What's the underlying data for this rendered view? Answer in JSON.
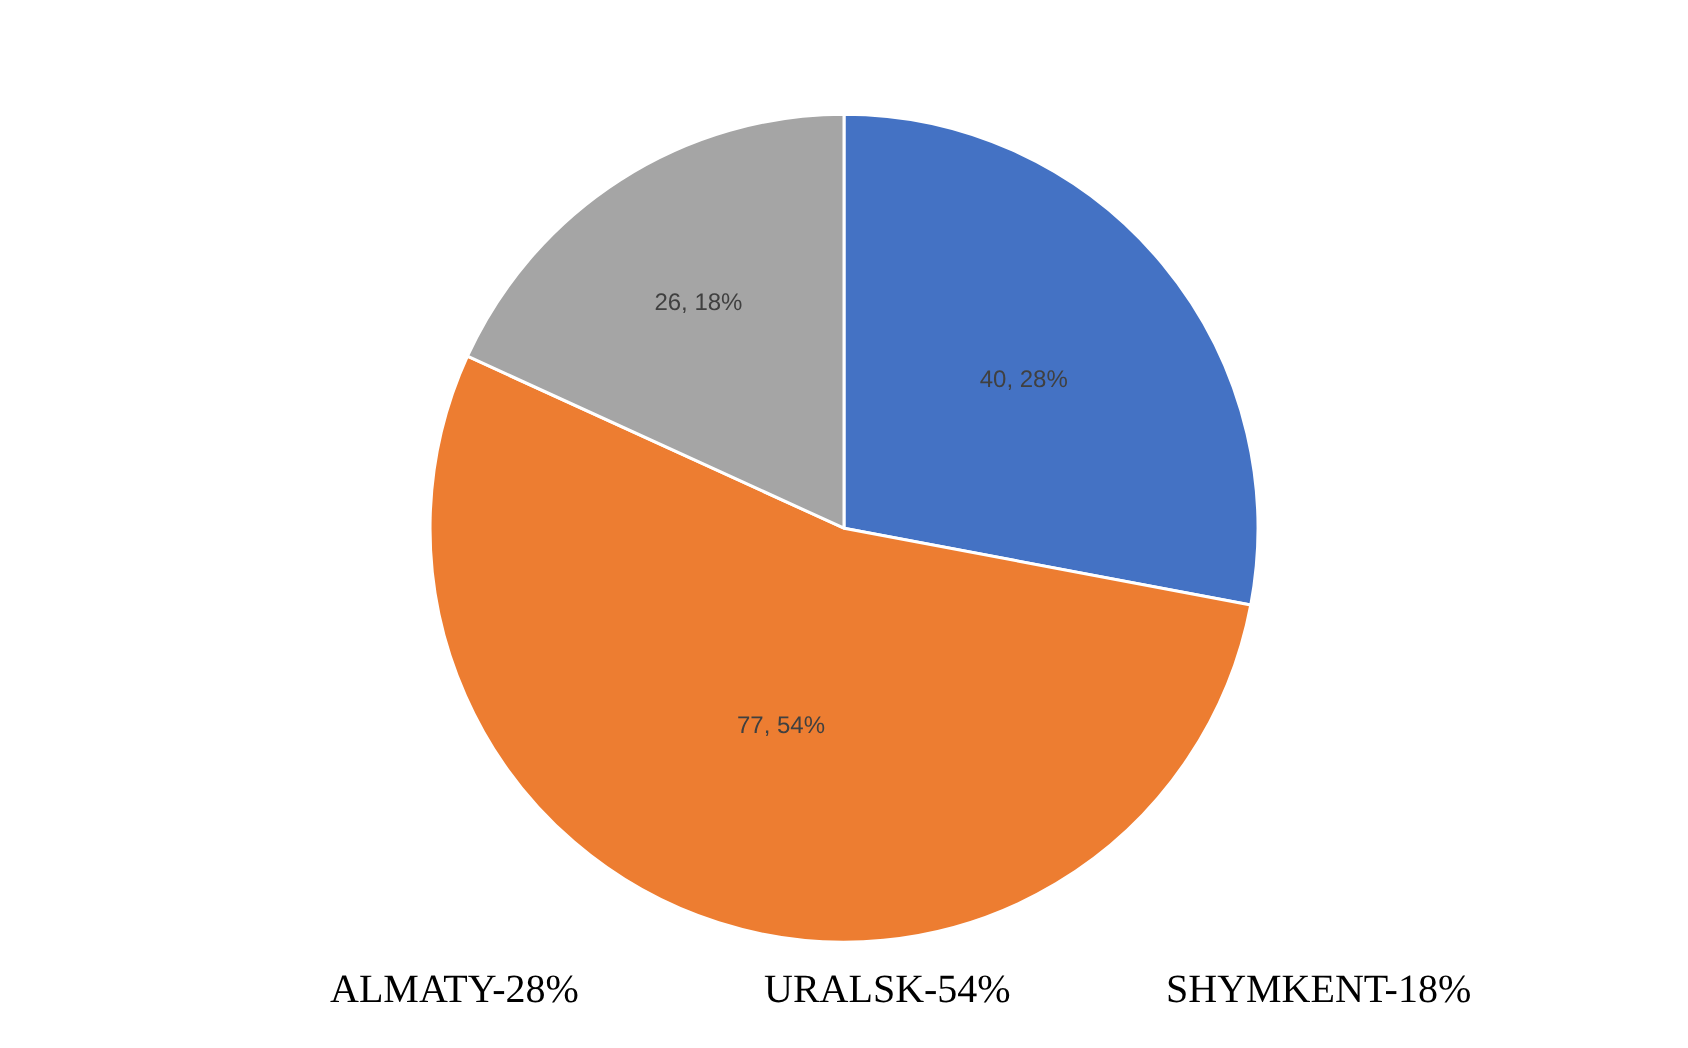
{
  "chart_data": {
    "type": "pie",
    "categories": [
      null,
      null,
      null
    ],
    "values": [
      40,
      77,
      26
    ],
    "colors": [
      "#4472c4",
      "#ed7d31",
      "#a5a5a5"
    ],
    "value_labels": [
      "40, 28%",
      "77, 54%",
      "26, 18%"
    ],
    "annotations": [
      "ALMATY-28%",
      "URALSK-54%",
      "SHYMKENT-18%"
    ]
  }
}
